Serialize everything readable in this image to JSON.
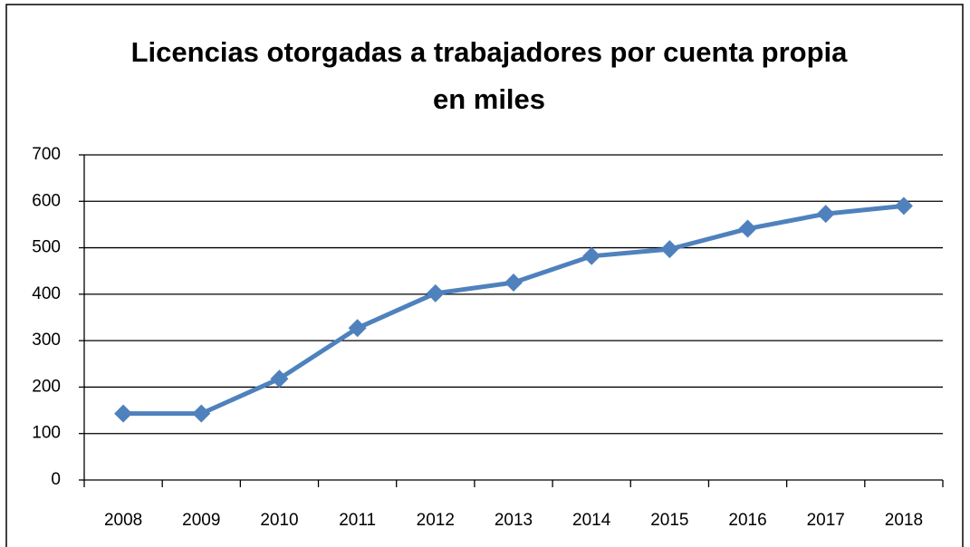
{
  "chart_data": {
    "type": "line",
    "title": [
      "Licencias otorgadas a trabajadores por cuenta propia",
      "en miles"
    ],
    "categories": [
      "2008",
      "2009",
      "2010",
      "2011",
      "2012",
      "2013",
      "2014",
      "2015",
      "2016",
      "2017",
      "2018"
    ],
    "values": [
      143,
      143,
      218,
      327,
      402,
      425,
      482,
      497,
      541,
      573,
      590
    ],
    "color": "#4f81bd",
    "ylim": [
      0,
      700
    ],
    "yticks": [
      0,
      100,
      200,
      300,
      400,
      500,
      600,
      700
    ],
    "grid": true
  }
}
